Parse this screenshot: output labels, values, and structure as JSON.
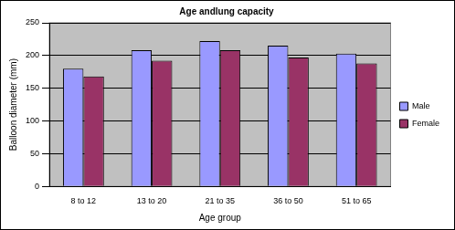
{
  "chart_data": {
    "type": "bar",
    "title": "Age andlung capacity",
    "x_label": "Age group",
    "y_label": "Balloon diameter (mm)",
    "categories": [
      "8 to 12",
      "13 to 20",
      "21 to 35",
      "36 to 50",
      "51 to 65"
    ],
    "series": [
      {
        "name": "Male",
        "color": "#9999ff",
        "values": [
          180,
          208,
          222,
          215,
          203
        ]
      },
      {
        "name": "Female",
        "color": "#993366",
        "values": [
          168,
          192,
          208,
          197,
          188
        ]
      }
    ],
    "ylim": [
      0,
      250
    ],
    "yticks": [
      0,
      50,
      100,
      150,
      200,
      250
    ],
    "grid": true,
    "legend": "right"
  }
}
